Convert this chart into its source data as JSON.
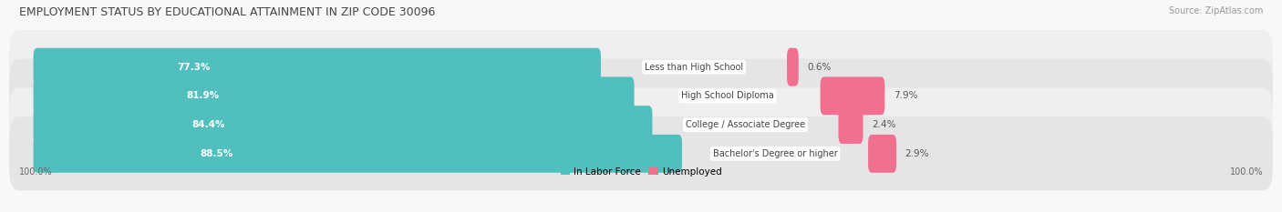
{
  "title": "EMPLOYMENT STATUS BY EDUCATIONAL ATTAINMENT IN ZIP CODE 30096",
  "source": "Source: ZipAtlas.com",
  "categories": [
    "Less than High School",
    "High School Diploma",
    "College / Associate Degree",
    "Bachelor's Degree or higher"
  ],
  "labor_force": [
    77.3,
    81.9,
    84.4,
    88.5
  ],
  "unemployed": [
    0.6,
    7.9,
    2.4,
    2.9
  ],
  "labor_force_color": "#52BFBF",
  "unemployed_color": "#F07090",
  "row_bg_color_odd": "#EFEFEF",
  "row_bg_color_even": "#E5E5E5",
  "title_fontsize": 9,
  "label_fontsize": 7.5,
  "value_label_fontsize": 7.5,
  "legend_fontsize": 7.5,
  "source_fontsize": 7,
  "axis_label_fontsize": 7,
  "left_label": "100.0%",
  "right_label": "100.0%",
  "background_color": "#F8F8F8",
  "bar_scale": 0.85,
  "unemployed_scale": 0.1
}
